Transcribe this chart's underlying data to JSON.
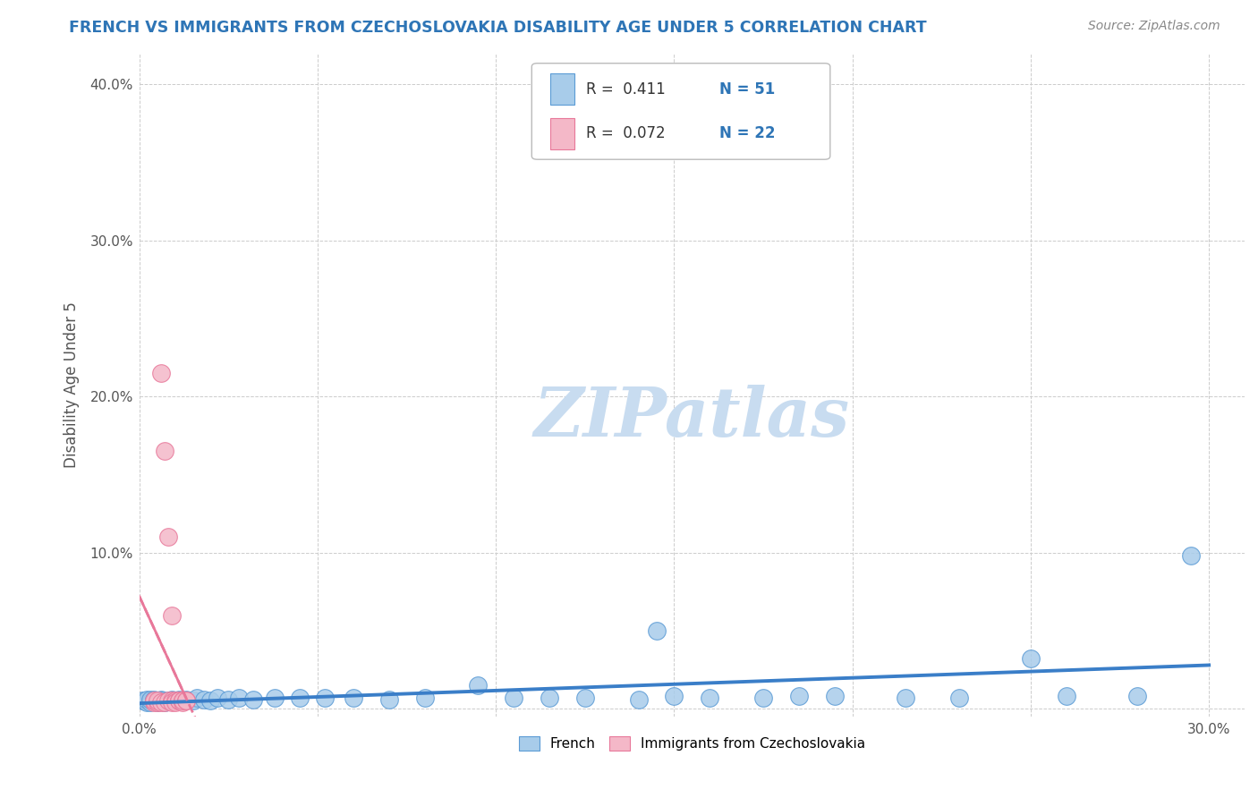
{
  "title": "FRENCH VS IMMIGRANTS FROM CZECHOSLOVAKIA DISABILITY AGE UNDER 5 CORRELATION CHART",
  "source": "Source: ZipAtlas.com",
  "ylabel": "Disability Age Under 5",
  "watermark": "ZIPatlas",
  "xlim": [
    0.0,
    0.31
  ],
  "ylim": [
    -0.005,
    0.42
  ],
  "xticks": [
    0.0,
    0.05,
    0.1,
    0.15,
    0.2,
    0.25,
    0.3
  ],
  "yticks": [
    0.0,
    0.1,
    0.2,
    0.3,
    0.4
  ],
  "xtick_labels": [
    "0.0%",
    "",
    "",
    "",
    "",
    "",
    "30.0%"
  ],
  "ytick_labels": [
    "",
    "10.0%",
    "20.0%",
    "30.0%",
    "40.0%"
  ],
  "blue_color": "#A8CCEA",
  "pink_color": "#F4B8C8",
  "blue_edge_color": "#5B9BD5",
  "pink_edge_color": "#E8789A",
  "blue_line_color": "#3A7EC8",
  "pink_line_color": "#E8789A",
  "title_color": "#2E75B6",
  "source_color": "#888888",
  "watermark_color": "#C8DCF0",
  "grid_color": "#CCCCCC",
  "french_x": [
    0.001,
    0.001,
    0.002,
    0.002,
    0.003,
    0.003,
    0.003,
    0.004,
    0.004,
    0.005,
    0.005,
    0.006,
    0.006,
    0.007,
    0.008,
    0.009,
    0.01,
    0.011,
    0.012,
    0.013,
    0.015,
    0.016,
    0.018,
    0.02,
    0.022,
    0.025,
    0.028,
    0.032,
    0.038,
    0.045,
    0.052,
    0.06,
    0.07,
    0.08,
    0.095,
    0.105,
    0.115,
    0.125,
    0.14,
    0.15,
    0.16,
    0.175,
    0.185,
    0.195,
    0.145,
    0.215,
    0.23,
    0.25,
    0.26,
    0.28,
    0.295
  ],
  "french_y": [
    0.005,
    0.005,
    0.004,
    0.006,
    0.005,
    0.004,
    0.006,
    0.005,
    0.006,
    0.004,
    0.005,
    0.006,
    0.005,
    0.004,
    0.005,
    0.006,
    0.005,
    0.006,
    0.005,
    0.006,
    0.005,
    0.007,
    0.006,
    0.005,
    0.007,
    0.006,
    0.007,
    0.006,
    0.007,
    0.007,
    0.007,
    0.007,
    0.006,
    0.007,
    0.015,
    0.007,
    0.007,
    0.007,
    0.006,
    0.008,
    0.007,
    0.007,
    0.008,
    0.008,
    0.05,
    0.007,
    0.007,
    0.032,
    0.008,
    0.008,
    0.098
  ],
  "czecho_x": [
    0.004,
    0.004,
    0.005,
    0.005,
    0.006,
    0.006,
    0.007,
    0.007,
    0.008,
    0.008,
    0.009,
    0.009,
    0.009,
    0.01,
    0.01,
    0.011,
    0.011,
    0.012,
    0.012,
    0.012,
    0.013,
    0.013
  ],
  "czecho_y": [
    0.004,
    0.005,
    0.004,
    0.005,
    0.215,
    0.004,
    0.165,
    0.004,
    0.005,
    0.11,
    0.005,
    0.004,
    0.06,
    0.005,
    0.004,
    0.005,
    0.005,
    0.005,
    0.004,
    0.005,
    0.005,
    0.005
  ],
  "marker_size": 200
}
